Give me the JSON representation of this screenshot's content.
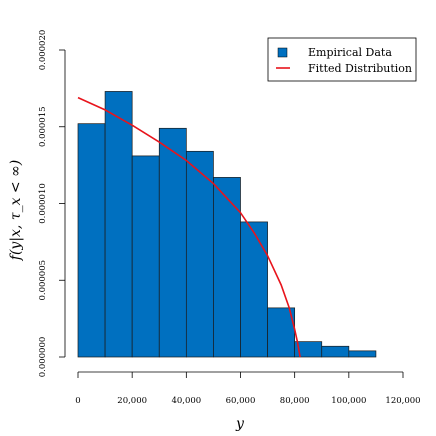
{
  "chart_data": {
    "type": "bar",
    "title": "",
    "xlabel": "y",
    "ylabel": "f(y|x, τ_x < ∞)",
    "xlim": [
      0,
      120000
    ],
    "ylim": [
      0,
      2e-05
    ],
    "x_ticks": [
      0,
      20000,
      40000,
      60000,
      80000,
      100000,
      120000
    ],
    "x_tick_labels": [
      "0",
      "20,000",
      "40,000",
      "60,000",
      "80,000",
      "100,000",
      "120,000"
    ],
    "y_ticks": [
      0,
      5e-06,
      1e-05,
      1.5e-05,
      2e-05
    ],
    "y_tick_labels": [
      "0.000000",
      "0.000005",
      "0.000010",
      "0.000015",
      "0.000020"
    ],
    "bin_edges": [
      0,
      10000,
      20000,
      30000,
      40000,
      50000,
      60000,
      70000,
      80000,
      90000,
      100000,
      110000
    ],
    "densities": [
      1.52e-05,
      1.73e-05,
      1.31e-05,
      1.49e-05,
      1.34e-05,
      1.17e-05,
      8.8e-06,
      3.2e-06,
      1e-06,
      7e-07,
      4e-07
    ],
    "fitted_curve": {
      "x": [
        0,
        10000,
        20000,
        30000,
        40000,
        50000,
        60000,
        65000,
        70000,
        75000,
        78000,
        80000,
        81000,
        82000
      ],
      "y": [
        1.69e-05,
        1.61e-05,
        1.51e-05,
        1.4e-05,
        1.28e-05,
        1.13e-05,
        9.4e-06,
        8.1e-06,
        6.6e-06,
        4.7e-06,
        3.2e-06,
        1.8e-06,
        1e-06,
        0.0
      ]
    },
    "series": [
      {
        "name": "Empirical Data",
        "color": "#0070C0"
      },
      {
        "name": "Fitted Distribution",
        "color": "#E8141C"
      }
    ],
    "legend_position": "top-right",
    "grid": false
  }
}
